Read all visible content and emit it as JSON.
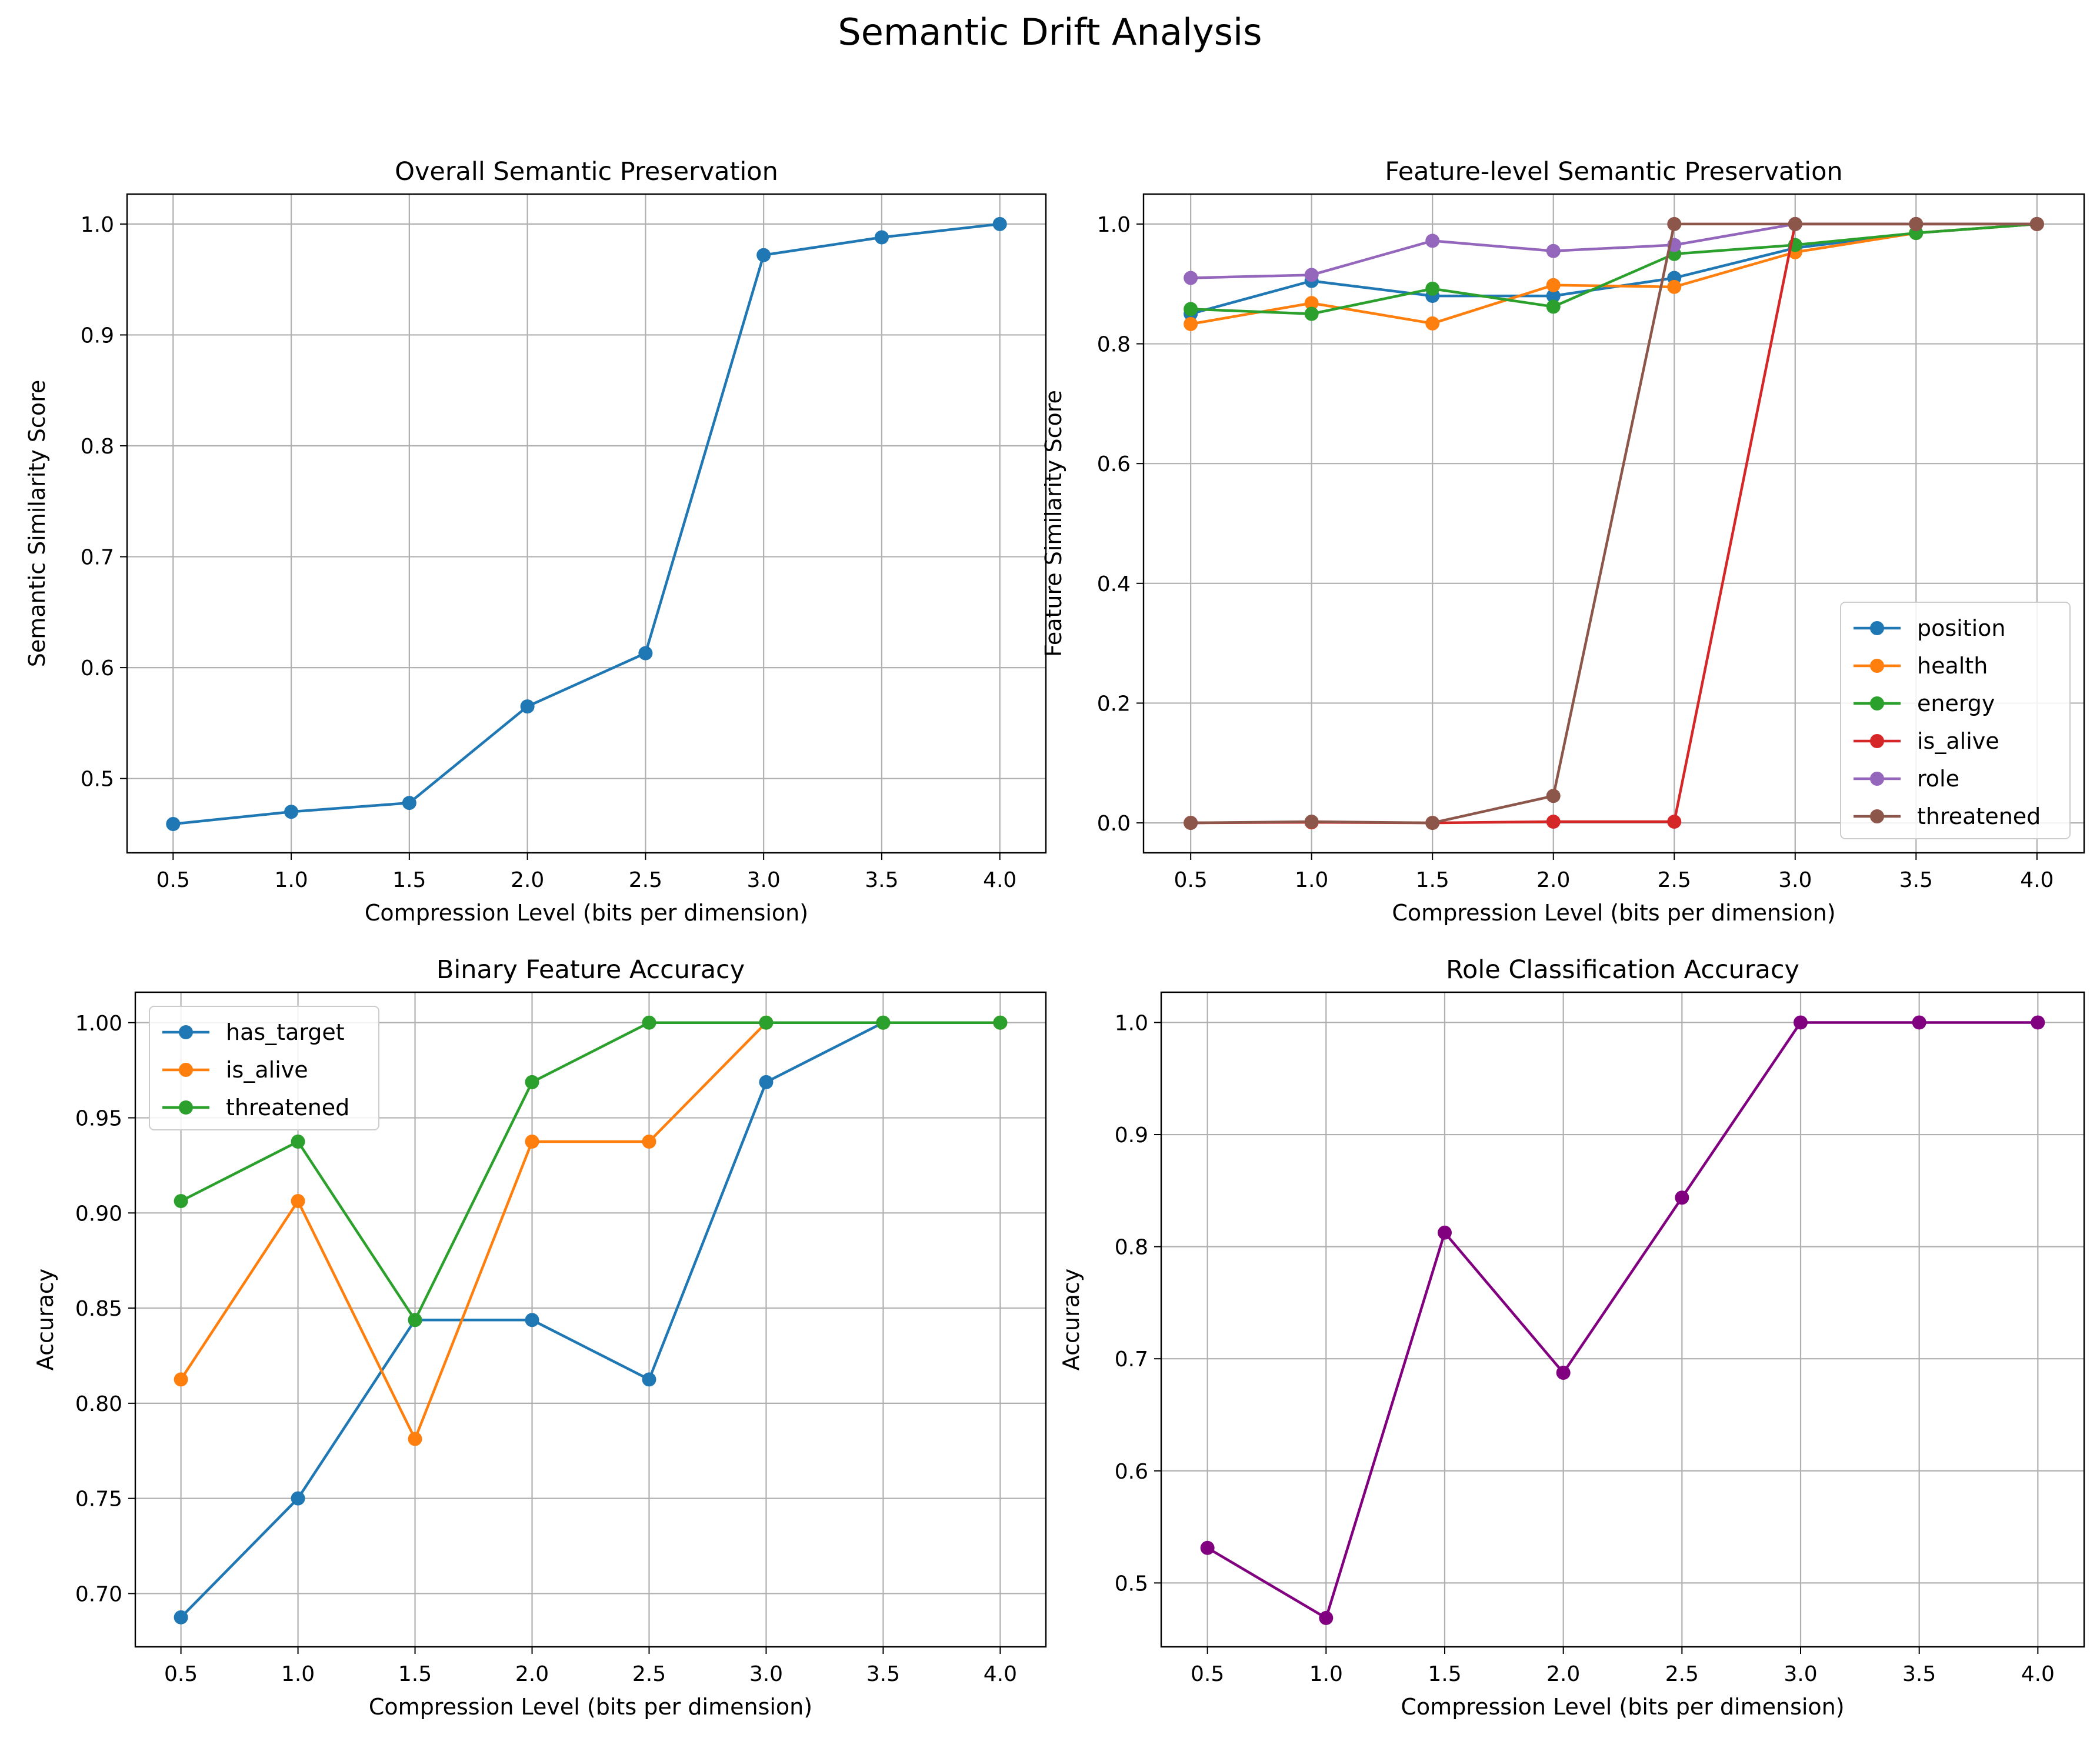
{
  "figure": {
    "title": "Semantic Drift Analysis"
  },
  "colors": {
    "blue": "#1f77b4",
    "orange": "#ff7f0e",
    "green": "#2ca02c",
    "red": "#d62728",
    "purple": "#9467bd",
    "brown": "#8c564b",
    "darkpurple": "#800080",
    "grid": "#b0b0b0"
  },
  "chart_data": [
    {
      "type": "line",
      "title": "Overall Semantic Preservation",
      "xlabel": "Compression Level (bits per dimension)",
      "ylabel": "Semantic Similarity Score",
      "x": [
        0.5,
        1.0,
        1.5,
        2.0,
        2.5,
        3.0,
        3.5,
        4.0
      ],
      "xlim": [
        0.305,
        4.195
      ],
      "ylim": [
        0.433,
        1.027
      ],
      "xticks": [
        "0.5",
        "1.0",
        "1.5",
        "2.0",
        "2.5",
        "3.0",
        "3.5",
        "4.0"
      ],
      "yticks": [
        "0.5",
        "0.6",
        "0.7",
        "0.8",
        "0.9",
        "1.0"
      ],
      "grid": true,
      "legend": "none",
      "series": [
        {
          "color": "blue",
          "values": [
            0.459,
            0.47,
            0.478,
            0.565,
            0.613,
            0.972,
            0.988,
            1.0
          ]
        }
      ]
    },
    {
      "type": "line",
      "title": "Feature-level Semantic Preservation",
      "xlabel": "Compression Level (bits per dimension)",
      "ylabel": "Feature Similarity Score",
      "x": [
        0.5,
        1.0,
        1.5,
        2.0,
        2.5,
        3.0,
        3.5,
        4.0
      ],
      "xlim": [
        0.305,
        4.195
      ],
      "ylim": [
        -0.05,
        1.05
      ],
      "xticks": [
        "0.5",
        "1.0",
        "1.5",
        "2.0",
        "2.5",
        "3.0",
        "3.5",
        "4.0"
      ],
      "yticks": [
        "0.0",
        "0.2",
        "0.4",
        "0.6",
        "0.8",
        "1.0"
      ],
      "grid": true,
      "legend": "lower-right",
      "series": [
        {
          "name": "position",
          "color": "blue",
          "values": [
            0.85,
            0.905,
            0.88,
            0.88,
            0.91,
            0.96,
            0.985,
            1.0
          ]
        },
        {
          "name": "health",
          "color": "orange",
          "values": [
            0.833,
            0.868,
            0.834,
            0.898,
            0.895,
            0.953,
            0.985,
            1.0
          ]
        },
        {
          "name": "energy",
          "color": "green",
          "values": [
            0.858,
            0.85,
            0.892,
            0.862,
            0.95,
            0.965,
            0.985,
            1.0
          ]
        },
        {
          "name": "is_alive",
          "color": "red",
          "values": [
            0.0,
            0.001,
            0.0,
            0.002,
            0.002,
            1.0,
            1.0,
            1.0
          ]
        },
        {
          "name": "role",
          "color": "purple",
          "values": [
            0.91,
            0.915,
            0.972,
            0.955,
            0.965,
            1.0,
            1.0,
            1.0
          ]
        },
        {
          "name": "threatened",
          "color": "brown",
          "values": [
            0.0,
            0.002,
            0.0,
            0.045,
            1.0,
            1.0,
            1.0,
            1.0
          ]
        }
      ]
    },
    {
      "type": "line",
      "title": "Binary Feature Accuracy",
      "xlabel": "Compression Level (bits per dimension)",
      "ylabel": "Accuracy",
      "x": [
        0.5,
        1.0,
        1.5,
        2.0,
        2.5,
        3.0,
        3.5,
        4.0
      ],
      "xlim": [
        0.305,
        4.195
      ],
      "ylim": [
        0.672,
        1.016
      ],
      "xticks": [
        "0.5",
        "1.0",
        "1.5",
        "2.0",
        "2.5",
        "3.0",
        "3.5",
        "4.0"
      ],
      "yticks": [
        "0.70",
        "0.75",
        "0.80",
        "0.85",
        "0.90",
        "0.95",
        "1.00"
      ],
      "grid": true,
      "legend": "upper-left",
      "series": [
        {
          "name": "has_target",
          "color": "blue",
          "values": [
            0.6875,
            0.75,
            0.84375,
            0.84375,
            0.8125,
            0.96875,
            1.0,
            1.0
          ]
        },
        {
          "name": "is_alive",
          "color": "orange",
          "values": [
            0.8125,
            0.90625,
            0.78125,
            0.9375,
            0.9375,
            1.0,
            1.0,
            1.0
          ]
        },
        {
          "name": "threatened",
          "color": "green",
          "values": [
            0.90625,
            0.9375,
            0.84375,
            0.96875,
            1.0,
            1.0,
            1.0,
            1.0
          ]
        }
      ]
    },
    {
      "type": "line",
      "title": "Role Classification Accuracy",
      "xlabel": "Compression Level (bits per dimension)",
      "ylabel": "Accuracy",
      "x": [
        0.5,
        1.0,
        1.5,
        2.0,
        2.5,
        3.0,
        3.5,
        4.0
      ],
      "xlim": [
        0.305,
        4.195
      ],
      "ylim": [
        0.443,
        1.027
      ],
      "xticks": [
        "0.5",
        "1.0",
        "1.5",
        "2.0",
        "2.5",
        "3.0",
        "3.5",
        "4.0"
      ],
      "yticks": [
        "0.5",
        "0.6",
        "0.7",
        "0.8",
        "0.9",
        "1.0"
      ],
      "grid": true,
      "legend": "none",
      "series": [
        {
          "color": "darkpurple",
          "values": [
            0.53125,
            0.46875,
            0.8125,
            0.6875,
            0.84375,
            1.0,
            1.0,
            1.0
          ]
        }
      ]
    }
  ]
}
